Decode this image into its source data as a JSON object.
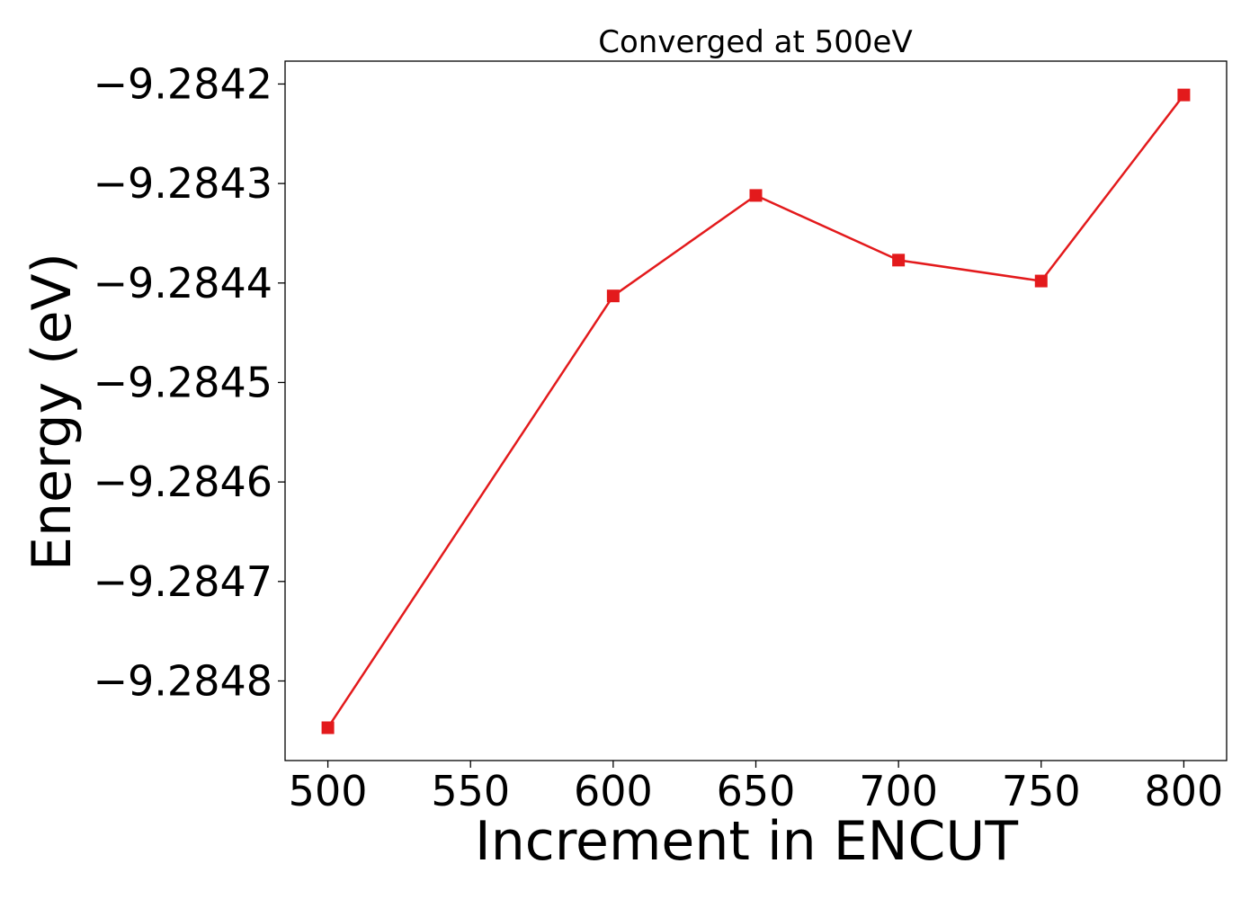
{
  "chart_data": {
    "type": "line",
    "title": "Converged at 500eV",
    "xlabel": "Increment in ENCUT",
    "ylabel": "Energy (eV)",
    "x": [
      500,
      600,
      650,
      700,
      750,
      800
    ],
    "series": [
      {
        "marker": "square",
        "color": "#e31a1c",
        "values": [
          -9.284847,
          -9.284413,
          -9.284312,
          -9.284377,
          -9.284398,
          -9.284211
        ]
      }
    ],
    "xlim": [
      485,
      815
    ],
    "ylim": [
      -9.28488,
      -9.284177
    ],
    "xticks": [
      500,
      550,
      600,
      650,
      700,
      750,
      800
    ],
    "xtick_labels": [
      "500",
      "550",
      "600",
      "650",
      "700",
      "750",
      "800"
    ],
    "yticks": [
      -9.2848,
      -9.2847,
      -9.2846,
      -9.2845,
      -9.2844,
      -9.2843,
      -9.2842
    ],
    "ytick_labels": [
      "−9.2848",
      "−9.2847",
      "−9.2846",
      "−9.2845",
      "−9.2844",
      "−9.2843",
      "−9.2842"
    ],
    "grid": false,
    "legend": false
  }
}
